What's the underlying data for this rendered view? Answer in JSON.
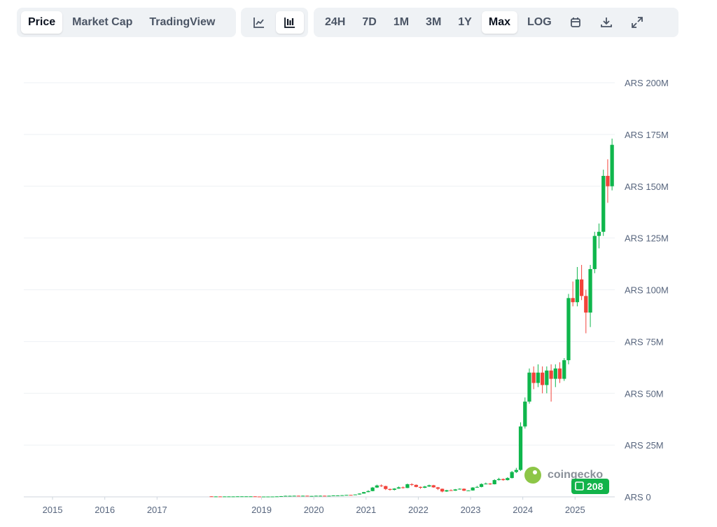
{
  "toolbar": {
    "tabs": [
      "Price",
      "Market Cap",
      "TradingView"
    ],
    "active_tab": 0,
    "active_view": 1,
    "ranges": [
      "24H",
      "7D",
      "1M",
      "3M",
      "1Y",
      "Max",
      "LOG"
    ],
    "active_range": 5
  },
  "watermark": {
    "brand": "coingecko",
    "badge": "208"
  },
  "chart_data": {
    "type": "candlestick",
    "up_color": "#0fb64c",
    "down_color": "#f2433b",
    "grid": true,
    "x": [
      2018.042,
      2018.125,
      2018.208,
      2018.292,
      2018.375,
      2018.458,
      2018.542,
      2018.625,
      2018.708,
      2018.792,
      2018.875,
      2018.958,
      2019.042,
      2019.125,
      2019.208,
      2019.292,
      2019.375,
      2019.458,
      2019.542,
      2019.625,
      2019.708,
      2019.792,
      2019.875,
      2019.958,
      2020.042,
      2020.125,
      2020.208,
      2020.292,
      2020.375,
      2020.458,
      2020.542,
      2020.625,
      2020.708,
      2020.792,
      2020.875,
      2020.958,
      2021.042,
      2021.125,
      2021.208,
      2021.292,
      2021.375,
      2021.458,
      2021.542,
      2021.625,
      2021.708,
      2021.792,
      2021.875,
      2021.958,
      2022.042,
      2022.125,
      2022.208,
      2022.292,
      2022.375,
      2022.458,
      2022.542,
      2022.625,
      2022.708,
      2022.792,
      2022.875,
      2022.958,
      2023.042,
      2023.125,
      2023.208,
      2023.292,
      2023.375,
      2023.458,
      2023.542,
      2023.625,
      2023.708,
      2023.792,
      2023.875,
      2023.958,
      2024.042,
      2024.125,
      2024.208,
      2024.292,
      2024.375,
      2024.458,
      2024.542,
      2024.625,
      2024.708,
      2024.792,
      2024.875,
      2024.958,
      2025.042,
      2025.125,
      2025.208,
      2025.292,
      2025.375,
      2025.458,
      2025.542,
      2025.625,
      2025.708
    ],
    "open": [
      0.25,
      0.2,
      0.2,
      0.15,
      0.2,
      0.2,
      0.2,
      0.25,
      0.25,
      0.25,
      0.25,
      0.17,
      0.15,
      0.15,
      0.16,
      0.17,
      0.23,
      0.35,
      0.5,
      0.5,
      0.55,
      0.5,
      0.55,
      0.45,
      0.45,
      0.55,
      0.55,
      0.4,
      0.55,
      0.7,
      0.7,
      0.8,
      0.95,
      0.9,
      1.15,
      1.6,
      2.3,
      2.8,
      4.5,
      5.5,
      5.2,
      3.8,
      3.4,
      4.0,
      4.6,
      4.3,
      6.1,
      5.8,
      4.8,
      4.4,
      5.0,
      5.6,
      4.6,
      3.9,
      2.6,
      3.2,
      3.0,
      3.6,
      3.9,
      3.0,
      3.1,
      4.5,
      4.8,
      6.2,
      6.4,
      6.1,
      8.1,
      8.6,
      8.1,
      9.1,
      12,
      13,
      34,
      46,
      60,
      55,
      60,
      54,
      61,
      57,
      62,
      57,
      66,
      96,
      94,
      105,
      97,
      89,
      110,
      126,
      128,
      155,
      150
    ],
    "high": [
      0.3,
      0.25,
      0.22,
      0.23,
      0.25,
      0.23,
      0.28,
      0.28,
      0.28,
      0.28,
      0.27,
      0.19,
      0.17,
      0.18,
      0.19,
      0.25,
      0.38,
      0.6,
      0.6,
      0.6,
      0.58,
      0.6,
      0.58,
      0.5,
      0.6,
      0.65,
      0.6,
      0.58,
      0.75,
      0.75,
      0.85,
      1.0,
      1.0,
      1.2,
      1.7,
      2.4,
      3.2,
      4.8,
      5.9,
      6.0,
      5.4,
      4.0,
      4.2,
      5.0,
      5.0,
      6.4,
      6.6,
      6.0,
      5.0,
      5.3,
      5.9,
      5.8,
      4.8,
      4.0,
      3.4,
      3.6,
      3.8,
      4.1,
      4.1,
      3.2,
      4.7,
      5.3,
      6.5,
      6.9,
      6.7,
      8.5,
      9.2,
      8.9,
      9.5,
      12.5,
      14,
      36,
      48,
      62,
      63,
      64,
      63,
      63,
      64,
      64,
      65,
      67,
      98,
      104,
      111,
      112,
      100,
      112,
      128,
      132,
      158,
      163,
      173
    ],
    "low": [
      0.15,
      0.15,
      0.12,
      0.13,
      0.17,
      0.17,
      0.19,
      0.22,
      0.22,
      0.23,
      0.15,
      0.13,
      0.13,
      0.14,
      0.15,
      0.16,
      0.22,
      0.33,
      0.45,
      0.45,
      0.45,
      0.45,
      0.42,
      0.4,
      0.43,
      0.5,
      0.3,
      0.38,
      0.52,
      0.65,
      0.68,
      0.78,
      0.85,
      0.88,
      1.1,
      1.55,
      2.2,
      2.7,
      4.3,
      4.8,
      3.3,
      3.0,
      3.1,
      3.9,
      4.0,
      4.2,
      5.3,
      4.6,
      3.9,
      4.2,
      4.8,
      4.4,
      3.3,
      2.2,
      2.4,
      2.9,
      2.9,
      3.5,
      2.8,
      2.9,
      3.0,
      4.4,
      4.6,
      6.0,
      5.8,
      6.0,
      7.9,
      7.8,
      7.9,
      8.9,
      11.5,
      12.5,
      33,
      45,
      52,
      53,
      50,
      50,
      46,
      53,
      55,
      56,
      64,
      92,
      92,
      95,
      79,
      82,
      108,
      120,
      126,
      142,
      148
    ],
    "close": [
      0.2,
      0.2,
      0.15,
      0.2,
      0.2,
      0.2,
      0.25,
      0.25,
      0.25,
      0.25,
      0.17,
      0.15,
      0.15,
      0.16,
      0.17,
      0.23,
      0.35,
      0.5,
      0.5,
      0.55,
      0.5,
      0.55,
      0.45,
      0.45,
      0.55,
      0.55,
      0.4,
      0.55,
      0.7,
      0.7,
      0.8,
      0.95,
      0.9,
      1.15,
      1.6,
      2.3,
      2.8,
      4.5,
      5.5,
      5.2,
      3.8,
      3.4,
      4.0,
      4.6,
      4.3,
      6.1,
      5.8,
      4.8,
      4.4,
      5.0,
      5.6,
      4.6,
      3.9,
      2.6,
      3.2,
      3.0,
      3.6,
      3.9,
      3.0,
      3.1,
      4.5,
      4.8,
      6.2,
      6.4,
      6.1,
      8.1,
      8.6,
      8.1,
      9.1,
      12,
      13,
      34,
      46,
      60,
      55,
      60,
      54,
      61,
      57,
      62,
      57,
      66,
      96,
      94,
      105,
      97,
      89,
      110,
      126,
      128,
      155,
      150,
      170
    ],
    "xlim": [
      2014.45,
      2025.76
    ],
    "xticks": [
      2015,
      2016,
      2017,
      2019,
      2020,
      2021,
      2022,
      2023,
      2024,
      2025
    ],
    "ylim": [
      0,
      200
    ],
    "yticks": [
      {
        "value": 0,
        "label": "ARS 0"
      },
      {
        "value": 25,
        "label": "ARS 25M"
      },
      {
        "value": 50,
        "label": "ARS 50M"
      },
      {
        "value": 75,
        "label": "ARS 75M"
      },
      {
        "value": 100,
        "label": "ARS 100M"
      },
      {
        "value": 125,
        "label": "ARS 125M"
      },
      {
        "value": 150,
        "label": "ARS 150M"
      },
      {
        "value": 175,
        "label": "ARS 175M"
      },
      {
        "value": 200,
        "label": "ARS 200M"
      }
    ]
  }
}
